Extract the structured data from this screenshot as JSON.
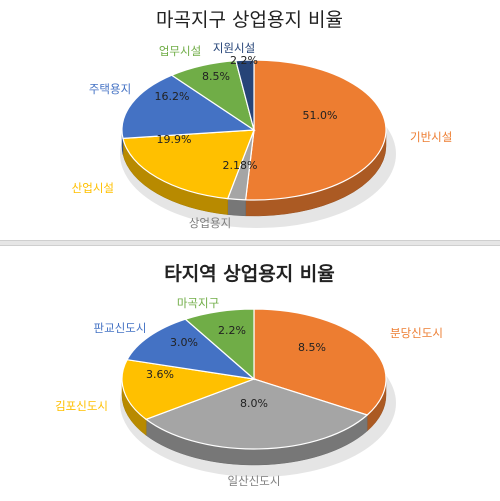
{
  "chart_data": [
    {
      "type": "pie",
      "title": "마곡지구 상업용지 비율",
      "slices": [
        {
          "name": "기반시설",
          "value_label": "51.0%",
          "value": 51.0,
          "color": "#ED7D31"
        },
        {
          "name": "상업용지",
          "value_label": "2.18%",
          "value": 2.18,
          "color": "#A5A5A5"
        },
        {
          "name": "산업시설",
          "value_label": "19.9%",
          "value": 19.9,
          "color": "#FFC000"
        },
        {
          "name": "주택용지",
          "value_label": "16.2%",
          "value": 16.2,
          "color": "#4472C4"
        },
        {
          "name": "업무시설",
          "value_label": "8.5%",
          "value": 8.5,
          "color": "#70AD47"
        },
        {
          "name": "지원시설",
          "value_label": "2.2%",
          "value": 2.2,
          "color": "#264478"
        }
      ]
    },
    {
      "type": "pie",
      "title": "타지역 상업용지 비율",
      "slices": [
        {
          "name": "분당신도시",
          "value_label": "8.5%",
          "value": 8.5,
          "color": "#ED7D31"
        },
        {
          "name": "일산신도시",
          "value_label": "8.0%",
          "value": 8.0,
          "color": "#A5A5A5"
        },
        {
          "name": "김포신도시",
          "value_label": "3.6%",
          "value": 3.6,
          "color": "#FFC000"
        },
        {
          "name": "판교신도시",
          "value_label": "3.0%",
          "value": 3.0,
          "color": "#4472C4"
        },
        {
          "name": "마곡지구",
          "value_label": "2.2%",
          "value": 2.2,
          "color": "#70AD47"
        }
      ]
    }
  ]
}
